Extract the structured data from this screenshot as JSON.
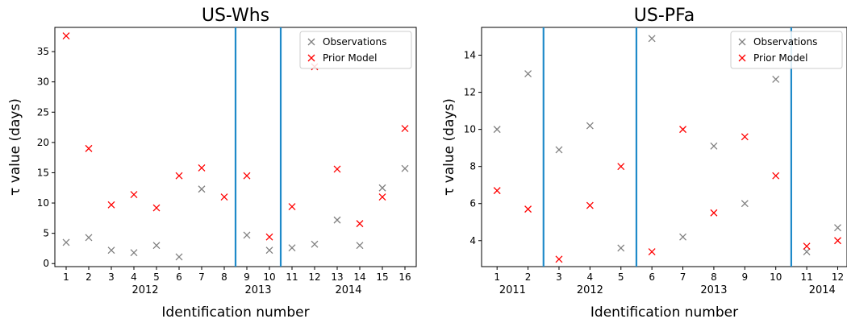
{
  "chart_data": [
    {
      "type": "scatter",
      "title": "US-Whs",
      "xlabel": "Identification number",
      "ylabel": "τ value (days)",
      "xlim": [
        0.5,
        16.5
      ],
      "ylim": [
        -0.5,
        39
      ],
      "x": [
        1,
        2,
        3,
        4,
        5,
        6,
        7,
        8,
        9,
        10,
        11,
        12,
        13,
        14,
        15,
        16
      ],
      "xticks": [
        "1",
        "2",
        "3",
        "4",
        "5",
        "6",
        "7",
        "8",
        "9",
        "10",
        "11",
        "12",
        "13",
        "14",
        "15",
        "16"
      ],
      "yticks": [
        0,
        5,
        10,
        15,
        20,
        25,
        30,
        35
      ],
      "ytick_labels": [
        "0",
        "5",
        "10",
        "15",
        "20",
        "25",
        "30",
        "35"
      ],
      "vlines": [
        8.5,
        10.5
      ],
      "year_labels": [
        {
          "label": "2012",
          "x": 4.5
        },
        {
          "label": "2013",
          "x": 9.5
        },
        {
          "label": "2014",
          "x": 13.5
        }
      ],
      "legend_position": "upper right",
      "series": [
        {
          "name": "Observations",
          "color": "#808080",
          "marker": "x",
          "values": [
            3.5,
            4.3,
            2.2,
            1.8,
            3.0,
            1.1,
            12.3,
            null,
            4.7,
            2.2,
            2.6,
            3.2,
            7.2,
            3.0,
            12.5,
            15.7
          ]
        },
        {
          "name": "Prior Model",
          "color": "#ff0000",
          "marker": "x",
          "values": [
            37.6,
            19.0,
            9.7,
            11.4,
            9.2,
            14.5,
            15.8,
            11.0,
            14.5,
            4.4,
            9.4,
            32.5,
            15.6,
            6.6,
            11.0,
            22.3
          ]
        }
      ]
    },
    {
      "type": "scatter",
      "title": "US-PFa",
      "xlabel": "Identification number",
      "ylabel": "τ value (days)",
      "xlim": [
        0.5,
        12.3
      ],
      "ylim": [
        2.6,
        15.5
      ],
      "x": [
        1,
        2,
        3,
        4,
        5,
        6,
        7,
        8,
        9,
        10,
        11,
        12
      ],
      "xticks": [
        "1",
        "2",
        "3",
        "4",
        "5",
        "6",
        "7",
        "8",
        "9",
        "10",
        "11",
        "12"
      ],
      "yticks": [
        4,
        6,
        8,
        10,
        12,
        14
      ],
      "ytick_labels": [
        "4",
        "6",
        "8",
        "10",
        "12",
        "14"
      ],
      "vlines": [
        2.5,
        5.5,
        10.5
      ],
      "year_labels": [
        {
          "label": "2011",
          "x": 1.5
        },
        {
          "label": "2012",
          "x": 4
        },
        {
          "label": "2013",
          "x": 8
        },
        {
          "label": "2014",
          "x": 11.5
        }
      ],
      "legend_position": "upper right",
      "series": [
        {
          "name": "Observations",
          "color": "#808080",
          "marker": "x",
          "values": [
            10.0,
            13.0,
            8.9,
            10.2,
            3.6,
            14.9,
            4.2,
            9.1,
            6.0,
            12.7,
            3.4,
            4.7
          ]
        },
        {
          "name": "Prior Model",
          "color": "#ff0000",
          "marker": "x",
          "values": [
            6.7,
            5.7,
            3.0,
            5.9,
            8.0,
            3.4,
            10.0,
            5.5,
            9.6,
            7.5,
            3.7,
            4.0
          ]
        }
      ]
    }
  ]
}
